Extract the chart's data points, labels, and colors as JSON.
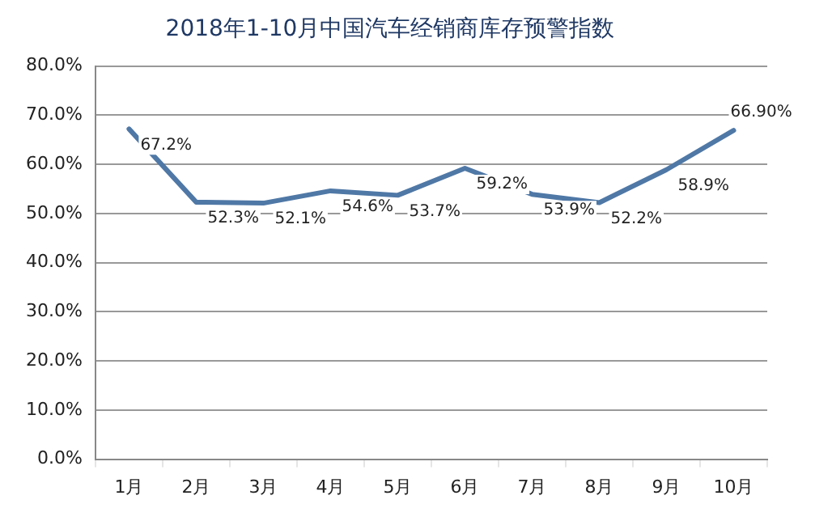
{
  "chart_data": {
    "type": "line",
    "title": "2018年1-10月中国汽车经销商库存预警指数",
    "categories": [
      "1月",
      "2月",
      "3月",
      "4月",
      "5月",
      "6月",
      "7月",
      "8月",
      "9月",
      "10月"
    ],
    "series": [
      {
        "color": "#4f78a6",
        "values": [
          67.2,
          52.3,
          52.1,
          54.6,
          53.7,
          59.2,
          53.9,
          52.2,
          58.9,
          66.9
        ],
        "value_labels": [
          "67.2%",
          "52.3%",
          "52.1%",
          "54.6%",
          "53.7%",
          "59.2%",
          "53.9%",
          "52.2%",
          "58.9%",
          "66.90%"
        ]
      }
    ],
    "ylim": [
      0,
      80
    ],
    "yticks": [
      {
        "value": 0,
        "label": "0.0%"
      },
      {
        "value": 10,
        "label": "10.0%"
      },
      {
        "value": 20,
        "label": "20.0%"
      },
      {
        "value": 30,
        "label": "30.0%"
      },
      {
        "value": 40,
        "label": "40.0%"
      },
      {
        "value": 50,
        "label": "50.0%"
      },
      {
        "value": 60,
        "label": "60.0%"
      },
      {
        "value": 70,
        "label": "70.0%"
      },
      {
        "value": 80,
        "label": "80.0%"
      }
    ],
    "grid": "y",
    "legend": false,
    "marker": "none",
    "line_style": "solid"
  }
}
